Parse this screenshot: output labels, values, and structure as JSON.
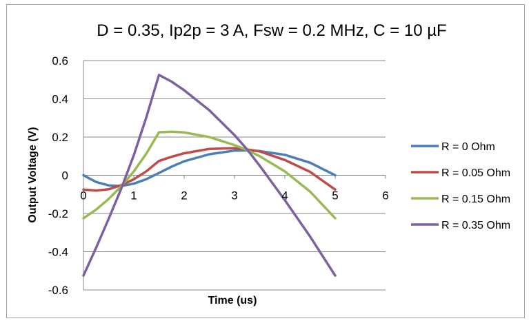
{
  "chart_data": {
    "type": "line",
    "title": "D = 0.35, Ip2p = 3 A, Fsw = 0.2 MHz, C = 10 µF",
    "xlabel": "Time (us)",
    "ylabel": "Output Voltage (V)",
    "xlim": [
      0,
      6
    ],
    "ylim": [
      -0.6,
      0.6
    ],
    "xticks": [
      "0",
      "1",
      "2",
      "3",
      "4",
      "5",
      "6"
    ],
    "yticks": [
      "0.6",
      "0.4",
      "0.2",
      "0",
      "-0.2",
      "-0.4",
      "-0.6"
    ],
    "grid": true,
    "legend_position": "right",
    "series": [
      {
        "name": "R = 0 Ohm",
        "color": "#4a7ebb",
        "x": [
          0,
          0.25,
          0.5,
          0.75,
          1.0,
          1.25,
          1.5,
          1.75,
          2.0,
          2.5,
          3.0,
          3.25,
          3.5,
          4.0,
          4.5,
          5.0
        ],
        "y": [
          0,
          -0.035,
          -0.053,
          -0.056,
          -0.044,
          -0.02,
          0.012,
          0.045,
          0.073,
          0.11,
          0.129,
          0.13,
          0.127,
          0.107,
          0.066,
          0
        ]
      },
      {
        "name": "R = 0.05 Ohm",
        "color": "#be4b48",
        "x": [
          0,
          0.25,
          0.5,
          0.75,
          1.0,
          1.25,
          1.5,
          1.75,
          2.0,
          2.5,
          3.0,
          3.25,
          3.5,
          4.0,
          4.5,
          5.0
        ],
        "y": [
          -0.075,
          -0.08,
          -0.073,
          -0.052,
          -0.021,
          0.021,
          0.075,
          0.097,
          0.115,
          0.138,
          0.142,
          0.135,
          0.125,
          0.08,
          0.018,
          -0.075
        ]
      },
      {
        "name": "R = 0.15 Ohm",
        "color": "#98b954",
        "x": [
          0,
          0.25,
          0.5,
          0.75,
          1.0,
          1.25,
          1.5,
          1.75,
          2.0,
          2.5,
          3.0,
          3.25,
          3.5,
          4.0,
          4.5,
          5.0
        ],
        "y": [
          -0.225,
          -0.18,
          -0.124,
          -0.058,
          0.02,
          0.114,
          0.225,
          0.228,
          0.224,
          0.2,
          0.158,
          0.132,
          0.1,
          0.02,
          -0.085,
          -0.225
        ]
      },
      {
        "name": "R = 0.35 Ohm",
        "color": "#7d60a0",
        "x": [
          0,
          0.25,
          0.5,
          0.75,
          1.0,
          1.25,
          1.5,
          1.75,
          2.0,
          2.5,
          3.0,
          3.25,
          3.5,
          4.0,
          4.5,
          5.0
        ],
        "y": [
          -0.525,
          -0.38,
          -0.228,
          -0.07,
          0.105,
          0.305,
          0.525,
          0.49,
          0.445,
          0.34,
          0.21,
          0.135,
          0.05,
          -0.13,
          -0.32,
          -0.525
        ]
      }
    ]
  }
}
